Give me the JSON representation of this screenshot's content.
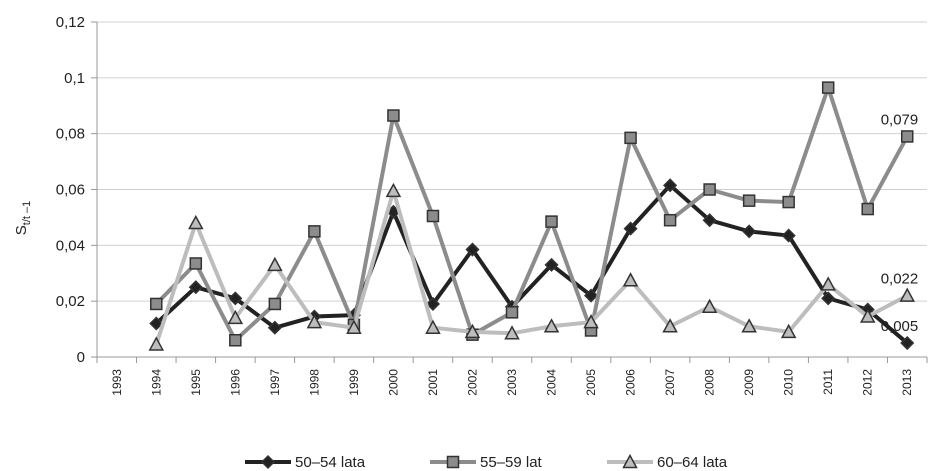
{
  "chart_data": {
    "type": "line",
    "title": "",
    "xlabel": "",
    "ylabel_main": "S",
    "ylabel_sub": "t/t –1",
    "ylim": [
      0,
      0.12
    ],
    "y_ticks": [
      {
        "value": 0,
        "label": "0"
      },
      {
        "value": 0.02,
        "label": "0,02"
      },
      {
        "value": 0.04,
        "label": "0,04"
      },
      {
        "value": 0.06,
        "label": "0,06"
      },
      {
        "value": 0.08,
        "label": "0,08"
      },
      {
        "value": 0.1,
        "label": "0,1"
      },
      {
        "value": 0.12,
        "label": "0,12"
      }
    ],
    "grid": true,
    "legend_position": "bottom",
    "categories": [
      "1993",
      "1994",
      "1995",
      "1996",
      "1997",
      "1998",
      "1999",
      "2000",
      "2001",
      "2002",
      "2003",
      "2004",
      "2005",
      "2006",
      "2007",
      "2008",
      "2009",
      "2010",
      "2011",
      "2012",
      "2013"
    ],
    "series": [
      {
        "name": "50–54 lata",
        "color": "#222222",
        "marker": "diamond",
        "values": [
          null,
          0.012,
          0.025,
          0.021,
          0.0105,
          0.0145,
          0.015,
          0.052,
          0.019,
          0.0385,
          0.018,
          0.033,
          0.022,
          0.046,
          0.0615,
          0.049,
          0.045,
          0.0435,
          0.021,
          0.017,
          0.005
        ]
      },
      {
        "name": "55–59 lat",
        "color": "#8c8c8c",
        "marker": "square",
        "values": [
          null,
          0.019,
          0.0335,
          0.006,
          0.019,
          0.045,
          0.0115,
          0.0865,
          0.0505,
          0.008,
          0.016,
          0.0485,
          0.0095,
          0.0785,
          0.049,
          0.06,
          0.056,
          0.0555,
          0.0965,
          0.053,
          0.079
        ]
      },
      {
        "name": "60–64 lata",
        "color": "#bdbdbd",
        "marker": "triangle",
        "values": [
          null,
          0.0045,
          0.048,
          0.014,
          0.033,
          0.0125,
          0.0105,
          0.0595,
          0.0105,
          0.009,
          0.0085,
          0.011,
          0.0125,
          0.0275,
          0.011,
          0.018,
          0.011,
          0.009,
          0.026,
          0.0145,
          0.022
        ]
      }
    ],
    "annotations": [
      {
        "series": 1,
        "category": "2013",
        "text": "0,079"
      },
      {
        "series": 2,
        "category": "2013",
        "text": "0,022"
      },
      {
        "series": 0,
        "category": "2013",
        "text": "0,005"
      }
    ]
  }
}
